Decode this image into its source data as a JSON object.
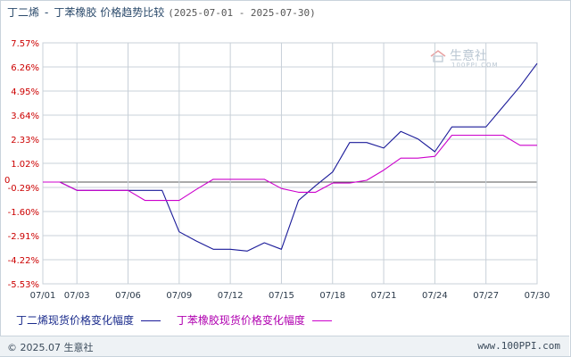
{
  "title": {
    "main": "丁二烯",
    "separator": "-",
    "second": "丁苯橡胶",
    "suffix": "价格趋势比较",
    "date_range": "(2025-07-01 - 2025-07-30)"
  },
  "watermark": {
    "text": "生意社",
    "sub": "100PPI.COM"
  },
  "footer": {
    "copyright": "© 2025.07 生意社",
    "site": "www.100PPI.com"
  },
  "colors": {
    "series1": "#1a1a99",
    "series2": "#cc00cc",
    "grid": "#c8d0d8",
    "axis_text": "#cc0000",
    "x_text": "#2b3a4a"
  },
  "chart_data": {
    "type": "line",
    "y_ticks": [
      "7.57%",
      "6.26%",
      "4.95%",
      "3.64%",
      "2.33%",
      "1.02%",
      "-0.29%",
      "-1.60%",
      "-2.91%",
      "-4.22%",
      "-5.53%"
    ],
    "y_tick_values": [
      7.57,
      6.26,
      4.95,
      3.64,
      2.33,
      1.02,
      -0.29,
      -1.6,
      -2.91,
      -4.22,
      -5.53
    ],
    "zero_label": "0",
    "ylim": [
      -5.53,
      7.57
    ],
    "x_ticks": [
      "07/01",
      "07/03",
      "07/06",
      "07/09",
      "07/12",
      "07/15",
      "07/18",
      "07/21",
      "07/24",
      "07/27",
      "07/30"
    ],
    "xlim": [
      "07/01",
      "07/30"
    ],
    "grid": true,
    "legend_position": "bottom",
    "series": [
      {
        "name": "丁二烯现货价格变化幅度",
        "points": [
          [
            "07/01",
            0.0
          ],
          [
            "07/02",
            0.0
          ],
          [
            "07/03",
            -0.45
          ],
          [
            "07/04",
            -0.45
          ],
          [
            "07/05",
            -0.45
          ],
          [
            "07/06",
            -0.45
          ],
          [
            "07/07",
            -0.45
          ],
          [
            "07/08",
            -0.45
          ],
          [
            "07/09",
            -2.7
          ],
          [
            "07/10",
            -3.2
          ],
          [
            "07/11",
            -3.65
          ],
          [
            "07/12",
            -3.65
          ],
          [
            "07/13",
            -3.75
          ],
          [
            "07/14",
            -3.3
          ],
          [
            "07/15",
            -3.65
          ],
          [
            "07/16",
            -1.0
          ],
          [
            "07/17",
            -0.2
          ],
          [
            "07/18",
            0.55
          ],
          [
            "07/19",
            2.15
          ],
          [
            "07/20",
            2.15
          ],
          [
            "07/21",
            1.85
          ],
          [
            "07/22",
            2.75
          ],
          [
            "07/23",
            2.35
          ],
          [
            "07/24",
            1.65
          ],
          [
            "07/25",
            3.0
          ],
          [
            "07/26",
            3.0
          ],
          [
            "07/27",
            3.0
          ],
          [
            "07/28",
            4.1
          ],
          [
            "07/29",
            5.2
          ],
          [
            "07/30",
            6.45
          ]
        ]
      },
      {
        "name": "丁苯橡胶现货价格变化幅度",
        "points": [
          [
            "07/01",
            0.0
          ],
          [
            "07/02",
            0.0
          ],
          [
            "07/03",
            -0.45
          ],
          [
            "07/04",
            -0.45
          ],
          [
            "07/05",
            -0.45
          ],
          [
            "07/06",
            -0.45
          ],
          [
            "07/07",
            -1.0
          ],
          [
            "07/08",
            -1.0
          ],
          [
            "07/09",
            -1.0
          ],
          [
            "07/10",
            -0.4
          ],
          [
            "07/11",
            0.15
          ],
          [
            "07/12",
            0.15
          ],
          [
            "07/13",
            0.15
          ],
          [
            "07/14",
            0.15
          ],
          [
            "07/15",
            -0.35
          ],
          [
            "07/16",
            -0.55
          ],
          [
            "07/17",
            -0.55
          ],
          [
            "07/18",
            -0.05
          ],
          [
            "07/19",
            -0.05
          ],
          [
            "07/20",
            0.1
          ],
          [
            "07/21",
            0.65
          ],
          [
            "07/22",
            1.3
          ],
          [
            "07/23",
            1.3
          ],
          [
            "07/24",
            1.4
          ],
          [
            "07/25",
            2.55
          ],
          [
            "07/26",
            2.55
          ],
          [
            "07/27",
            2.55
          ],
          [
            "07/28",
            2.55
          ],
          [
            "07/29",
            2.0
          ],
          [
            "07/30",
            2.0
          ]
        ]
      }
    ]
  }
}
